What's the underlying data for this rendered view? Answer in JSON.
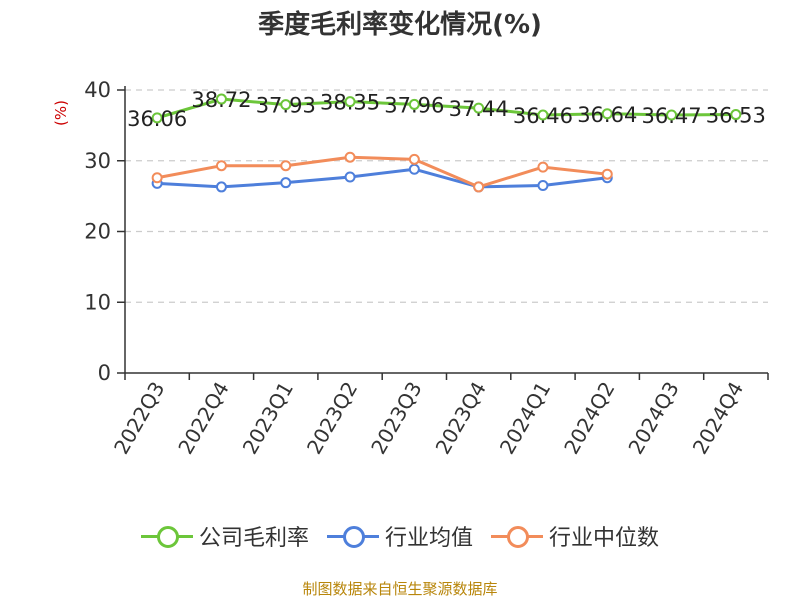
{
  "chart_data": {
    "type": "line",
    "title": "季度毛利率变化情况(%)",
    "ylabel": "(%)",
    "xlabel": "",
    "categories": [
      "2022Q3",
      "2022Q4",
      "2023Q1",
      "2023Q2",
      "2023Q3",
      "2023Q4",
      "2024Q1",
      "2024Q2",
      "2024Q3",
      "2024Q4"
    ],
    "ylim": [
      0,
      40
    ],
    "yticks": [
      0,
      10,
      20,
      30,
      40
    ],
    "grid": true,
    "legend_position": "bottom",
    "series": [
      {
        "name": "公司毛利率",
        "color": "#6cc63a",
        "values": [
          36.06,
          38.72,
          37.93,
          38.35,
          37.96,
          37.44,
          36.46,
          36.64,
          36.47,
          36.53
        ],
        "labels": [
          "36.06",
          "38.72",
          "37.93",
          "38.35",
          "37.96",
          "37.44",
          "36.46",
          "36.64",
          "36.47",
          "36.53"
        ]
      },
      {
        "name": "行业均值",
        "color": "#4e7fdb",
        "values": [
          26.8,
          26.3,
          26.9,
          27.7,
          28.8,
          26.3,
          26.5,
          27.6,
          null,
          null
        ]
      },
      {
        "name": "行业中位数",
        "color": "#f28c5a",
        "values": [
          27.6,
          29.3,
          29.3,
          30.5,
          30.2,
          26.3,
          29.1,
          28.1,
          null,
          null
        ]
      }
    ]
  },
  "footer": {
    "source": "制图数据来自恒生聚源数据库"
  }
}
